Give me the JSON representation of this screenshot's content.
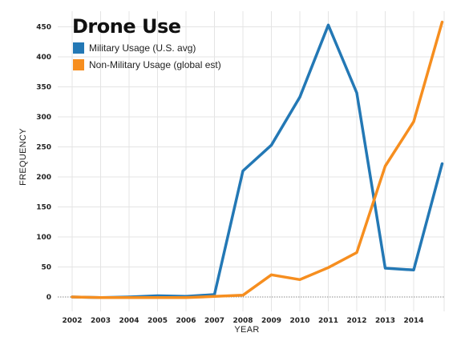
{
  "chart_data": {
    "type": "line",
    "title": "Drone Use",
    "xlabel": "YEAR",
    "ylabel": "FREQUENCY",
    "x": [
      2002,
      2003,
      2004,
      2005,
      2006,
      2007,
      2008,
      2009,
      2010,
      2011,
      2012,
      2013,
      2014,
      2015
    ],
    "x_tick_labels": [
      "2002",
      "2003",
      "2004",
      "2005",
      "2006",
      "2007",
      "2008",
      "2009",
      "2010",
      "2011",
      "2012",
      "2013",
      "2014"
    ],
    "y_ticks": [
      0,
      50,
      100,
      150,
      200,
      250,
      300,
      350,
      400,
      450
    ],
    "ylim": [
      0,
      470
    ],
    "grid": true,
    "legend_position": "top-left",
    "series": [
      {
        "name": "Military Usage (U.S. avg)",
        "color": "#2378b5",
        "values": [
          0,
          -1,
          0,
          2,
          1,
          4,
          210,
          253,
          333,
          453,
          340,
          48,
          45,
          222
        ]
      },
      {
        "name": "Non-Military Usage (global est)",
        "color": "#f68e1f",
        "values": [
          0,
          -1,
          -1,
          -1,
          -1,
          1,
          3,
          37,
          29,
          49,
          74,
          218,
          292,
          458
        ]
      }
    ]
  }
}
